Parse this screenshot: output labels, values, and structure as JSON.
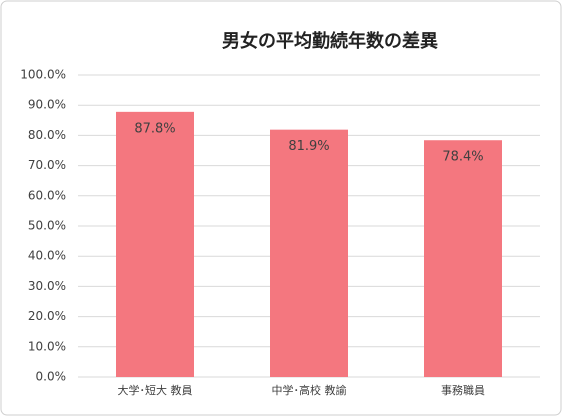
{
  "chart_data": {
    "type": "bar",
    "title": "男女の平均勤続年数の差異",
    "categories": [
      "大学･短大 教員",
      "中学･高校 教諭",
      "事務職員"
    ],
    "values": [
      87.8,
      81.9,
      78.4
    ],
    "value_labels": [
      "87.8%",
      "81.9%",
      "78.4%"
    ],
    "color": "#f4777f",
    "ylim": [
      0,
      100
    ],
    "yticks": [
      {
        "value": 0,
        "label": "0.0%"
      },
      {
        "value": 10,
        "label": "10.0%"
      },
      {
        "value": 20,
        "label": "20.0%"
      },
      {
        "value": 30,
        "label": "30.0%"
      },
      {
        "value": 40,
        "label": "40.0%"
      },
      {
        "value": 50,
        "label": "50.0%"
      },
      {
        "value": 60,
        "label": "60.0%"
      },
      {
        "value": 70,
        "label": "70.0%"
      },
      {
        "value": 80,
        "label": "80.0%"
      },
      {
        "value": 90,
        "label": "90.0%"
      },
      {
        "value": 100,
        "label": "100.0%"
      }
    ],
    "grid": true
  }
}
